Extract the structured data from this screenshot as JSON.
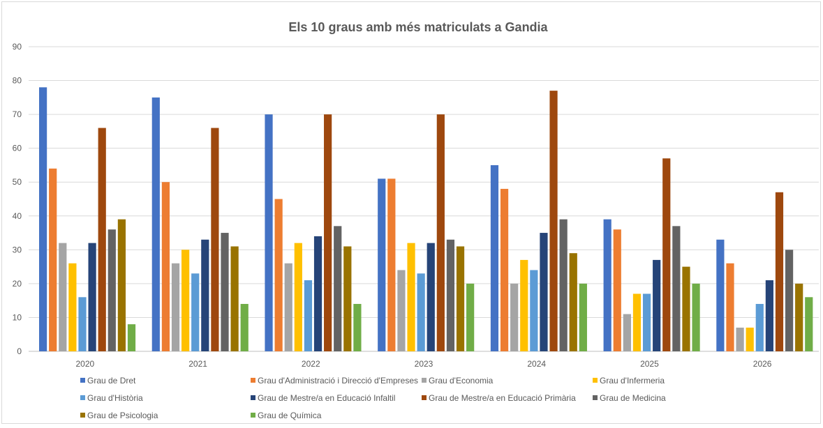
{
  "chart_data": {
    "type": "bar",
    "title": "Els 10 graus amb més matriculats a Gandia",
    "xlabel": "",
    "ylabel": "",
    "ylim": [
      0,
      90
    ],
    "yticks": [
      0,
      10,
      20,
      30,
      40,
      50,
      60,
      70,
      80,
      90
    ],
    "grid": true,
    "legend_position": "bottom",
    "categories": [
      "2020",
      "2021",
      "2022",
      "2023",
      "2024",
      "2025",
      "2026"
    ],
    "series": [
      {
        "name": "Grau de Dret",
        "color": "#4472C4",
        "values": [
          78,
          75,
          70,
          51,
          55,
          39,
          33
        ]
      },
      {
        "name": "Grau d'Administració i Direcció d'Empreses",
        "color": "#ED7D31",
        "values": [
          54,
          50,
          45,
          51,
          48,
          36,
          26
        ]
      },
      {
        "name": "Grau d'Economia",
        "color": "#A5A5A5",
        "values": [
          32,
          26,
          26,
          24,
          20,
          11,
          7
        ]
      },
      {
        "name": "Grau d'Infermeria",
        "color": "#FFC000",
        "values": [
          26,
          30,
          32,
          32,
          27,
          17,
          7
        ]
      },
      {
        "name": "Grau d'Història",
        "color": "#5B9BD5",
        "values": [
          16,
          23,
          21,
          23,
          24,
          17,
          14
        ]
      },
      {
        "name": "Grau de Mestre/a en Educació Infaltil",
        "color": "#264478",
        "values": [
          32,
          33,
          34,
          32,
          35,
          27,
          21
        ]
      },
      {
        "name": "Grau de Mestre/a en Educació Primària",
        "color": "#9E480E",
        "values": [
          66,
          66,
          70,
          70,
          77,
          57,
          47
        ]
      },
      {
        "name": "Grau de Medicina",
        "color": "#636363",
        "values": [
          36,
          35,
          37,
          33,
          39,
          37,
          30
        ]
      },
      {
        "name": "Grau de Psicologia",
        "color": "#997300",
        "values": [
          39,
          31,
          31,
          31,
          29,
          25,
          20
        ]
      },
      {
        "name": "Grau de Química",
        "color": "#70AD47",
        "values": [
          8,
          14,
          14,
          20,
          20,
          20,
          16
        ]
      }
    ]
  }
}
